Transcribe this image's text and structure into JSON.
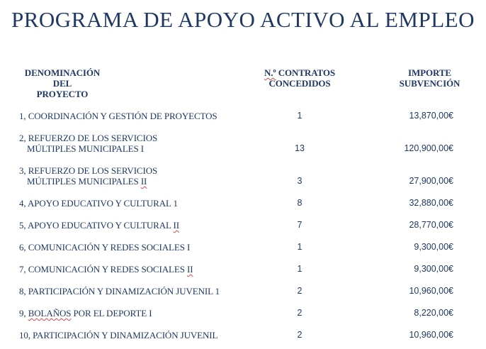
{
  "colors": {
    "text": "#1f3864",
    "squiggle": "#cf4a4a",
    "background": "#ffffff"
  },
  "title": "PROGRAMA DE APOYO ACTIVO AL EMPLEO",
  "table": {
    "columns": [
      {
        "id": "denominacion-del-proyecto",
        "lines": [
          [
            {
              "t": "DENOMINACIÓN"
            }
          ],
          [
            {
              "t": "DEL"
            }
          ],
          [
            {
              "t": "PROYECTO"
            }
          ]
        ]
      },
      {
        "id": "num-contratos-concedidos",
        "lines": [
          [
            {
              "t": "N.º",
              "sq": true
            },
            {
              "t": " CONTRATOS"
            }
          ],
          [
            {
              "t": "CONCEDIDOS"
            }
          ]
        ]
      },
      {
        "id": "importe-subvencion",
        "lines": [
          [
            {
              "t": "IMPORTE"
            }
          ],
          [
            {
              "t": "SUBVENCIÓN"
            }
          ]
        ]
      }
    ],
    "rows": [
      {
        "name_lines": [
          [
            {
              "t": "1, COORDINACIÓN Y GESTIÓN DE PROYECTOS"
            }
          ]
        ],
        "contracts": "1",
        "amount": "13,870,00€"
      },
      {
        "name_lines": [
          [
            {
              "t": "2, REFUERZO DE LOS SERVICIOS"
            }
          ],
          [
            {
              "t": "MÚLTIPLES MUNICIPALES I"
            }
          ]
        ],
        "contracts": "13",
        "amount": "120,900,00€"
      },
      {
        "name_lines": [
          [
            {
              "t": "3, REFUERZO DE LOS SERVICIOS"
            }
          ],
          [
            {
              "t": "MÚLTIPLES MUNICIPALES "
            },
            {
              "t": "II",
              "sq": true
            }
          ]
        ],
        "contracts": "3",
        "amount": "27,900,00€"
      },
      {
        "name_lines": [
          [
            {
              "t": "4, APOYO EDUCATIVO Y CULTURAL 1"
            }
          ]
        ],
        "contracts": "8",
        "amount": "32,880,00€"
      },
      {
        "name_lines": [
          [
            {
              "t": "5, APOYO EDUCATIVO Y CULTURAL "
            },
            {
              "t": "II",
              "sq": true
            }
          ]
        ],
        "contracts": "7",
        "amount": "28,770,00€"
      },
      {
        "name_lines": [
          [
            {
              "t": "6, COMUNICACIÓN Y REDES SOCIALES I"
            }
          ]
        ],
        "contracts": "1",
        "amount": "9,300,00€"
      },
      {
        "name_lines": [
          [
            {
              "t": "7, COMUNICACIÓN Y REDES SOCIALES "
            },
            {
              "t": "II",
              "sq": true
            }
          ]
        ],
        "contracts": "1",
        "amount": "9,300,00€"
      },
      {
        "name_lines": [
          [
            {
              "t": "8, PARTICIPACIÓN Y DINAMIZACIÓN JUVENIL 1"
            }
          ]
        ],
        "contracts": "2",
        "amount": "10,960,00€"
      },
      {
        "name_lines": [
          [
            {
              "t": "9, "
            },
            {
              "t": "BOLAÑOS",
              "sq": true
            },
            {
              "t": " POR EL DEPORTE I"
            }
          ]
        ],
        "contracts": "2",
        "amount": "8,220,00€"
      },
      {
        "name_lines": [
          [
            {
              "t": "10, PARTICIPACIÓN Y DINAMIZACIÓN JUVENIL"
            }
          ]
        ],
        "contracts": "2",
        "amount": "10,960,00€"
      }
    ]
  }
}
